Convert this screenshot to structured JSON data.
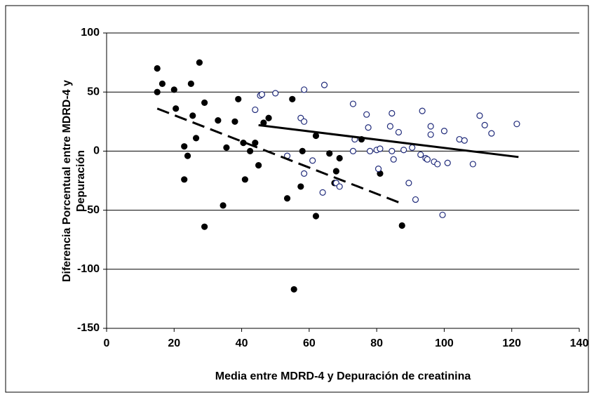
{
  "chart_data": {
    "type": "scatter",
    "x_label": "Media entre MDRD-4 y Depuración de creatinina",
    "y_label": [
      "Diferencia Porcentual entre MDRD-4 y",
      "Depuración"
    ],
    "xlim": [
      0,
      140
    ],
    "xticks": [
      0,
      20,
      40,
      60,
      80,
      100,
      120,
      140
    ],
    "ylim": [
      -150,
      100
    ],
    "yticks": [
      -150,
      -100,
      -50,
      0,
      50,
      100
    ],
    "grid": true,
    "series": [
      {
        "marker": "filled",
        "color": "#000000",
        "x": [
          15,
          15,
          16.5,
          20,
          20.5,
          23,
          23,
          24,
          25,
          25.5,
          26.5,
          27.5,
          29,
          29,
          33,
          34.5,
          35.5,
          38,
          39,
          40.5,
          41,
          42.5,
          44,
          45,
          46.5,
          48,
          53.5,
          55,
          55.5,
          57.5,
          58,
          62,
          62,
          66,
          68,
          67.5,
          69,
          75.5,
          81,
          87.5
        ],
        "values": [
          70,
          50,
          57,
          52,
          36,
          4,
          -24,
          -4,
          57,
          30,
          11,
          75,
          -64,
          41,
          26,
          -46,
          3,
          25,
          44,
          7,
          -24,
          0,
          7,
          -12,
          24,
          28,
          -40,
          44,
          -117,
          -30,
          0,
          13,
          -55,
          -2,
          -17,
          -27,
          -6,
          10,
          -19,
          -63
        ]
      },
      {
        "marker": "open",
        "color": "#1f2a7a",
        "x": [
          44,
          45.5,
          46,
          50,
          53.5,
          57.5,
          58.5,
          58.5,
          58.5,
          61,
          64,
          64.5,
          68,
          69,
          73,
          73,
          73.5,
          77,
          77.5,
          78,
          80,
          81,
          80.5,
          84,
          84.5,
          84.5,
          85,
          86.5,
          88,
          89.5,
          90.5,
          91.5,
          93,
          93.5,
          94.5,
          95,
          96,
          96,
          97,
          98,
          99.5,
          100,
          101,
          104.5,
          106,
          108.5,
          110.5,
          112,
          114,
          121.5
        ],
        "values": [
          35,
          47,
          48,
          49,
          -4,
          28,
          25,
          52,
          -19,
          -8,
          -35,
          56,
          -27,
          -30,
          40,
          0,
          10,
          31,
          20,
          0,
          1,
          2,
          -15,
          21,
          32,
          0,
          -7,
          16,
          1,
          -27,
          3,
          -41,
          -3,
          34,
          -6,
          -7,
          14,
          21,
          -9,
          -11,
          -54,
          17,
          -10,
          10,
          9,
          -11,
          30,
          22,
          15,
          23
        ]
      }
    ],
    "trend_lines": [
      {
        "style": "solid",
        "color": "#000000",
        "x": [
          45,
          122
        ],
        "values": [
          22,
          -5
        ]
      },
      {
        "style": "dashed",
        "color": "#000000",
        "x": [
          15,
          88
        ],
        "values": [
          36,
          -45
        ]
      }
    ]
  }
}
